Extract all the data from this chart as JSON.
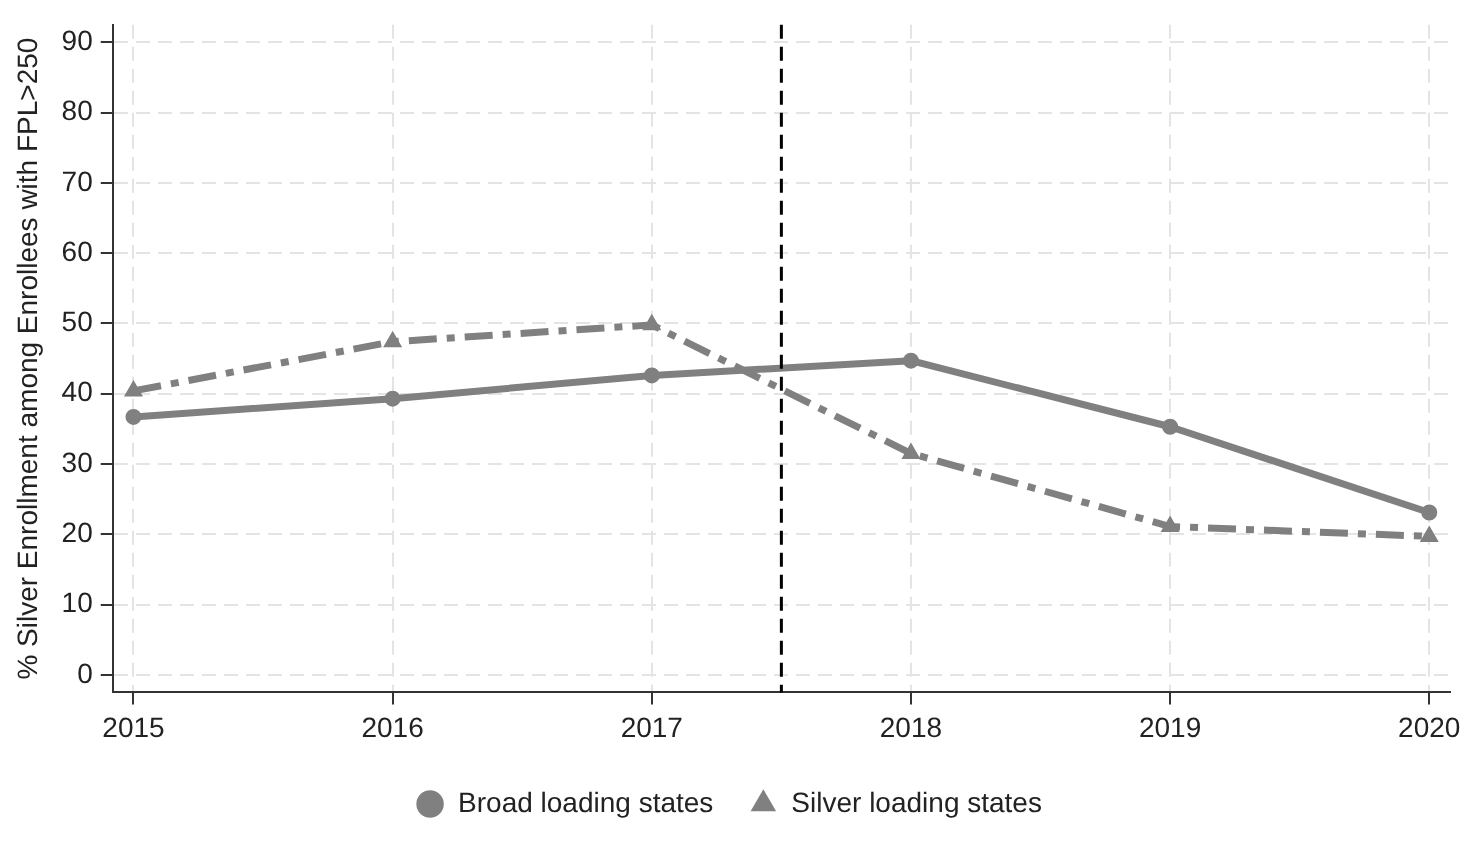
{
  "chart_data": {
    "type": "line",
    "ylabel": "% Silver Enrollment among Enrollees with FPL>250",
    "x": [
      2015,
      2016,
      2017,
      2018,
      2019,
      2020
    ],
    "series": [
      {
        "name": "Broad loading states",
        "color": "#808080",
        "values": [
          36.7,
          39.3,
          42.6,
          44.7,
          35.3,
          23.1
        ],
        "marker": "circle",
        "line_style": "solid"
      },
      {
        "name": "Silver loading states",
        "color": "#808080",
        "values": [
          40.4,
          47.4,
          49.8,
          31.5,
          21.1,
          19.7
        ],
        "marker": "triangle",
        "line_style": "dashed"
      }
    ],
    "xlim": [
      2014.92,
      2020.08
    ],
    "xticks": [
      2015,
      2016,
      2017,
      2018,
      2019,
      2020
    ],
    "ylim": [
      -2.5,
      92.5
    ],
    "yticks": [
      0,
      10,
      20,
      30,
      40,
      50,
      60,
      70,
      80,
      90
    ],
    "grid": true,
    "legend": "bottom",
    "ref_lines": [
      {
        "axis": "x",
        "value": 2017.5,
        "color": "#000000",
        "line_style": "dashed"
      }
    ]
  }
}
